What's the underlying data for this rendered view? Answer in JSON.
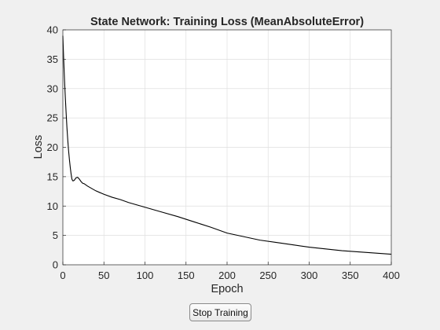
{
  "chart_data": {
    "type": "line",
    "title": "State Network: Training Loss (MeanAbsoluteError)",
    "xlabel": "Epoch",
    "ylabel": "Loss",
    "xlim": [
      0,
      400
    ],
    "ylim": [
      0,
      40
    ],
    "xticks": [
      0,
      50,
      100,
      150,
      200,
      250,
      300,
      350,
      400
    ],
    "yticks": [
      0,
      5,
      10,
      15,
      20,
      25,
      30,
      35,
      40
    ],
    "grid": true,
    "legend": "none",
    "series": [
      {
        "color": "#000000",
        "x": [
          0,
          1,
          2,
          3,
          4,
          5,
          6,
          7,
          8,
          9,
          10,
          11,
          12,
          13,
          14,
          16,
          18,
          20,
          22,
          24,
          26,
          28,
          30,
          35,
          40,
          45,
          50,
          60,
          70,
          80,
          90,
          100,
          120,
          140,
          160,
          180,
          200,
          220,
          240,
          260,
          280,
          300,
          320,
          340,
          360,
          380,
          400
        ],
        "y": [
          39.0,
          35.0,
          31.5,
          28.5,
          25.8,
          23.3,
          21.2,
          19.4,
          17.9,
          16.6,
          15.5,
          14.6,
          14.3,
          14.3,
          14.4,
          14.8,
          14.9,
          14.6,
          14.2,
          13.9,
          13.8,
          13.6,
          13.4,
          13.0,
          12.6,
          12.3,
          12.0,
          11.5,
          11.1,
          10.6,
          10.2,
          9.8,
          9.0,
          8.2,
          7.3,
          6.4,
          5.4,
          4.8,
          4.2,
          3.8,
          3.4,
          3.0,
          2.7,
          2.4,
          2.2,
          2.0,
          1.8
        ]
      }
    ]
  },
  "controls": {
    "stop_label": "Stop Training"
  },
  "colors": {
    "figure_background": "#f0f0f0",
    "axes_background": "#ffffff",
    "grid": "#dfdfdf",
    "line": "#000000"
  }
}
